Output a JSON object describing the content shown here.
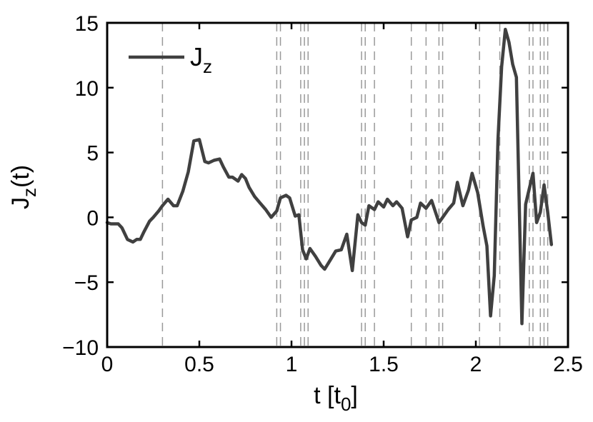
{
  "chart_data": {
    "type": "line",
    "xlabel": "t [t",
    "xlabel_sub": "0",
    "xlabel_end": "]",
    "ylabel": "J",
    "ylabel_sub": "z",
    "ylabel_end": "(t)",
    "xlim": [
      0,
      2.5
    ],
    "ylim": [
      -10,
      15
    ],
    "xticks": [
      0,
      0.5,
      1,
      1.5,
      2,
      2.5
    ],
    "xtick_labels": [
      "0",
      "0.5",
      "1",
      "1.5",
      "2",
      "2.5"
    ],
    "yticks": [
      -10,
      -5,
      0,
      5,
      10,
      15
    ],
    "ytick_labels": [
      "−10",
      "−5",
      "0",
      "5",
      "10",
      "15"
    ],
    "legend": {
      "placement": "top-left",
      "label": "J",
      "label_sub": "z"
    },
    "line_color": "#404040",
    "vline_color": "#999999",
    "vlines": [
      0.3,
      0.92,
      0.94,
      1.05,
      1.07,
      1.09,
      1.38,
      1.4,
      1.45,
      1.65,
      1.73,
      1.8,
      1.82,
      2.02,
      2.13,
      2.29,
      2.31,
      2.35,
      2.37,
      2.39
    ],
    "series": [
      {
        "x": [
          0,
          0.02,
          0.06,
          0.08,
          0.11,
          0.14,
          0.16,
          0.18,
          0.2,
          0.23,
          0.25,
          0.28,
          0.3,
          0.33,
          0.36,
          0.38,
          0.41,
          0.44,
          0.47,
          0.5,
          0.53,
          0.55,
          0.58,
          0.61,
          0.63,
          0.66,
          0.68,
          0.71,
          0.73,
          0.75,
          0.77,
          0.8,
          0.83,
          0.86,
          0.89,
          0.92,
          0.94,
          0.97,
          0.99,
          1.02,
          1.04,
          1.06,
          1.08,
          1.1,
          1.13,
          1.16,
          1.18,
          1.21,
          1.24,
          1.27,
          1.3,
          1.33,
          1.36,
          1.38,
          1.4,
          1.42,
          1.45,
          1.47,
          1.5,
          1.52,
          1.55,
          1.57,
          1.6,
          1.63,
          1.65,
          1.68,
          1.7,
          1.73,
          1.76,
          1.8,
          1.82,
          1.85,
          1.88,
          1.9,
          1.93,
          1.96,
          1.98,
          2.01,
          2.04,
          2.06,
          2.08,
          2.1,
          2.12,
          2.14,
          2.16,
          2.18,
          2.2,
          2.22,
          2.25,
          2.27,
          2.29,
          2.31,
          2.33,
          2.35,
          2.37,
          2.39,
          2.41
        ],
        "y": [
          -0.4,
          -0.5,
          -0.5,
          -0.8,
          -1.7,
          -1.9,
          -1.7,
          -1.7,
          -1.1,
          -0.3,
          0.0,
          0.5,
          0.9,
          1.4,
          0.9,
          0.9,
          2.0,
          3.5,
          5.9,
          6.0,
          4.3,
          4.2,
          4.4,
          4.5,
          3.9,
          3.1,
          3.1,
          2.8,
          3.3,
          3.0,
          2.3,
          1.6,
          1.1,
          0.6,
          0.0,
          0.5,
          1.5,
          1.7,
          1.5,
          0.1,
          0.2,
          -2.5,
          -3.2,
          -2.4,
          -3.0,
          -3.7,
          -4.0,
          -3.3,
          -2.6,
          -2.5,
          -1.3,
          -4.1,
          0.2,
          -0.4,
          -0.6,
          0.9,
          0.6,
          1.2,
          0.8,
          1.4,
          0.9,
          1.2,
          0.7,
          -1.5,
          -0.2,
          0.0,
          1.1,
          0.7,
          1.3,
          -0.4,
          0.0,
          0.6,
          1.1,
          2.7,
          0.9,
          2.1,
          3.4,
          1.9,
          -0.7,
          -2.2,
          -7.6,
          -4.5,
          6.0,
          11.6,
          14.5,
          13.5,
          11.8,
          10.8,
          -8.2,
          1.0,
          2.2,
          3.4,
          -0.4,
          0.4,
          2.5,
          0.4,
          -2.1
        ]
      }
    ]
  }
}
